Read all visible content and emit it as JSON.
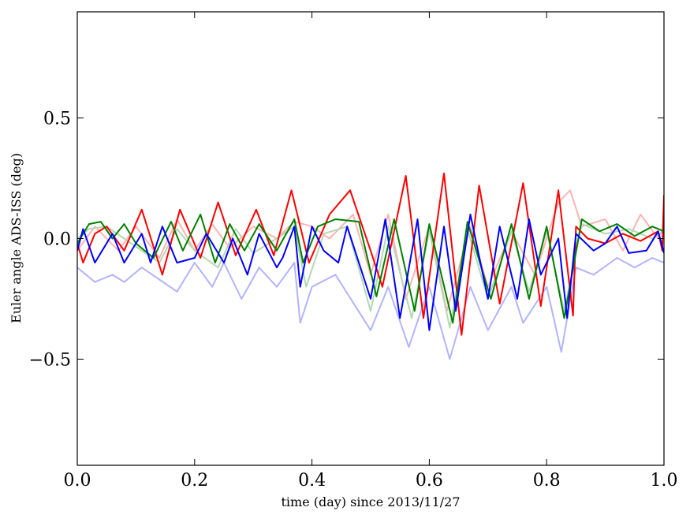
{
  "chart_data": {
    "type": "line",
    "title": "",
    "xlabel": "time (day) since 2013/11/27",
    "ylabel": "Euler angle ADS-ISS (deg)",
    "xlim": [
      0.0,
      1.0
    ],
    "ylim": [
      -0.94,
      0.94
    ],
    "xticks": [
      "0.0",
      "0.2",
      "0.4",
      "0.6",
      "0.8",
      "1.0"
    ],
    "xtick_values": [
      0.0,
      0.2,
      0.4,
      0.6,
      0.8,
      1.0
    ],
    "yticks": [
      "−0.5",
      "0.0",
      "0.5"
    ],
    "ytick_values": [
      -0.5,
      0.0,
      0.5
    ],
    "grid": false,
    "legend": "none",
    "series": [
      {
        "color": "#ffb3b3",
        "x": [
          0,
          0.03,
          0.07,
          0.1,
          0.14,
          0.17,
          0.2,
          0.23,
          0.26,
          0.3,
          0.34,
          0.37,
          0.4,
          0.43,
          0.47,
          0.5,
          0.53,
          0.56,
          0.6,
          0.63,
          0.67,
          0.7,
          0.74,
          0.78,
          0.82,
          0.84,
          0.86,
          0.9,
          0.93,
          0.96,
          0.99,
          1.0
        ],
        "y": [
          -0.05,
          0.05,
          -0.05,
          0.05,
          -0.08,
          0.08,
          -0.05,
          0.06,
          -0.04,
          0.05,
          0.0,
          0.07,
          0.05,
          0.0,
          0.1,
          -0.15,
          0.1,
          -0.25,
          0.05,
          -0.3,
          0.05,
          -0.2,
          0.03,
          -0.15,
          0.15,
          0.2,
          0.05,
          0.08,
          -0.05,
          0.1,
          0.0,
          0.05
        ]
      },
      {
        "color": "#b3d9b3",
        "x": [
          0,
          0.02,
          0.05,
          0.08,
          0.11,
          0.14,
          0.17,
          0.2,
          0.24,
          0.27,
          0.3,
          0.34,
          0.37,
          0.39,
          0.42,
          0.46,
          0.5,
          0.53,
          0.57,
          0.6,
          0.635,
          0.665,
          0.7,
          0.74,
          0.77,
          0.8,
          0.83,
          0.86,
          0.9,
          0.94,
          0.98,
          1.0
        ],
        "y": [
          0.0,
          0.04,
          0.05,
          0.0,
          -0.05,
          -0.1,
          0.04,
          -0.05,
          -0.12,
          0.04,
          -0.06,
          0.0,
          0.05,
          -0.2,
          0.02,
          0.05,
          -0.3,
          0.05,
          -0.33,
          0.03,
          -0.37,
          0.04,
          -0.25,
          0.03,
          -0.22,
          0.03,
          -0.3,
          0.06,
          0.02,
          0.04,
          0.0,
          0.03
        ]
      },
      {
        "color": "#b3b3ff",
        "x": [
          0,
          0.03,
          0.06,
          0.08,
          0.11,
          0.14,
          0.17,
          0.2,
          0.23,
          0.25,
          0.28,
          0.31,
          0.34,
          0.37,
          0.38,
          0.4,
          0.44,
          0.5,
          0.53,
          0.565,
          0.6,
          0.635,
          0.67,
          0.7,
          0.74,
          0.76,
          0.8,
          0.825,
          0.85,
          0.88,
          0.92,
          0.95,
          0.98,
          1.0
        ],
        "y": [
          -0.12,
          -0.18,
          -0.15,
          -0.18,
          -0.12,
          -0.17,
          -0.22,
          -0.1,
          -0.2,
          -0.1,
          -0.25,
          -0.12,
          -0.2,
          -0.1,
          -0.35,
          -0.2,
          -0.15,
          -0.38,
          -0.2,
          -0.45,
          -0.2,
          -0.5,
          -0.2,
          -0.38,
          -0.2,
          -0.35,
          -0.2,
          -0.47,
          -0.12,
          -0.15,
          -0.08,
          -0.12,
          -0.08,
          -0.1
        ]
      },
      {
        "color": "#ff0000",
        "x": [
          0,
          0.01,
          0.03,
          0.05,
          0.08,
          0.11,
          0.145,
          0.175,
          0.21,
          0.24,
          0.27,
          0.305,
          0.335,
          0.365,
          0.395,
          0.43,
          0.465,
          0.5,
          0.52,
          0.56,
          0.59,
          0.625,
          0.655,
          0.685,
          0.72,
          0.76,
          0.79,
          0.82,
          0.845,
          0.85,
          0.87,
          0.9,
          0.93,
          0.96,
          0.99,
          0.997,
          1.0
        ],
        "y": [
          -0.02,
          -0.1,
          0.02,
          0.05,
          -0.05,
          0.12,
          -0.15,
          0.12,
          -0.08,
          0.15,
          -0.07,
          0.12,
          -0.07,
          0.2,
          -0.1,
          0.1,
          0.2,
          -0.05,
          -0.2,
          0.26,
          -0.33,
          0.27,
          -0.4,
          0.22,
          -0.27,
          0.23,
          -0.28,
          0.2,
          -0.32,
          0.05,
          0.0,
          -0.02,
          0.02,
          -0.01,
          0.03,
          -0.05,
          0.18
        ]
      },
      {
        "color": "#008000",
        "x": [
          0,
          0.02,
          0.04,
          0.06,
          0.08,
          0.1,
          0.13,
          0.16,
          0.18,
          0.21,
          0.235,
          0.26,
          0.285,
          0.31,
          0.34,
          0.37,
          0.385,
          0.41,
          0.44,
          0.48,
          0.51,
          0.54,
          0.575,
          0.6,
          0.64,
          0.665,
          0.705,
          0.74,
          0.77,
          0.8,
          0.83,
          0.86,
          0.89,
          0.92,
          0.95,
          0.98,
          1.0
        ],
        "y": [
          -0.02,
          0.06,
          0.07,
          0.0,
          0.06,
          -0.02,
          -0.08,
          0.07,
          -0.05,
          0.1,
          -0.1,
          0.06,
          -0.05,
          0.06,
          -0.05,
          0.08,
          -0.1,
          0.05,
          0.08,
          0.07,
          -0.24,
          0.08,
          -0.3,
          0.06,
          -0.35,
          0.07,
          -0.25,
          0.06,
          -0.25,
          0.05,
          -0.33,
          0.08,
          0.03,
          0.06,
          0.01,
          0.05,
          0.03
        ]
      },
      {
        "color": "#0000ff",
        "x": [
          0,
          0.01,
          0.03,
          0.06,
          0.08,
          0.11,
          0.125,
          0.145,
          0.17,
          0.2,
          0.22,
          0.25,
          0.265,
          0.29,
          0.31,
          0.34,
          0.35,
          0.37,
          0.38,
          0.4,
          0.42,
          0.445,
          0.46,
          0.5,
          0.525,
          0.55,
          0.58,
          0.6,
          0.625,
          0.645,
          0.67,
          0.7,
          0.72,
          0.75,
          0.77,
          0.79,
          0.82,
          0.835,
          0.85,
          0.88,
          0.9,
          0.92,
          0.94,
          0.97,
          0.99,
          1.0
        ],
        "y": [
          -0.05,
          0.04,
          -0.1,
          0.02,
          -0.1,
          0.02,
          -0.1,
          0.05,
          -0.1,
          -0.08,
          0.02,
          -0.1,
          0.0,
          -0.15,
          0.02,
          -0.12,
          -0.08,
          0.05,
          -0.2,
          0.05,
          -0.05,
          -0.1,
          0.05,
          -0.25,
          0.08,
          -0.33,
          0.08,
          -0.38,
          0.05,
          -0.3,
          0.1,
          -0.25,
          0.05,
          -0.25,
          0.08,
          -0.15,
          0.0,
          -0.33,
          0.02,
          -0.05,
          -0.02,
          0.05,
          -0.06,
          -0.05,
          0.03,
          -0.06
        ]
      }
    ]
  }
}
